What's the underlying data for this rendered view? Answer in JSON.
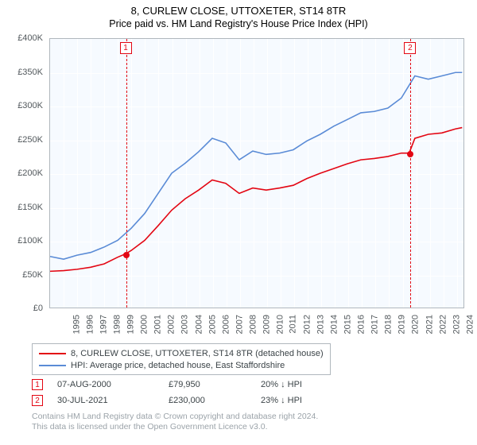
{
  "title": "8, CURLEW CLOSE, UTTOXETER, ST14 8TR",
  "subtitle": "Price paid vs. HM Land Registry's House Price Index (HPI)",
  "chart": {
    "type": "line",
    "background_color": "#f6faff",
    "border_color": "#b0b7bd",
    "grid_color": "#ffffff",
    "x_min": 1995,
    "x_max": 2025.6,
    "x_ticks": [
      1995,
      1996,
      1997,
      1998,
      1999,
      2000,
      2001,
      2002,
      2003,
      2004,
      2005,
      2006,
      2007,
      2008,
      2009,
      2010,
      2011,
      2012,
      2013,
      2014,
      2015,
      2016,
      2017,
      2018,
      2019,
      2020,
      2021,
      2022,
      2023,
      2024,
      2025
    ],
    "y_min": 0,
    "y_max": 400000,
    "y_ticks": [
      {
        "v": 0,
        "label": "£0"
      },
      {
        "v": 50000,
        "label": "£50K"
      },
      {
        "v": 100000,
        "label": "£100K"
      },
      {
        "v": 150000,
        "label": "£150K"
      },
      {
        "v": 200000,
        "label": "£200K"
      },
      {
        "v": 250000,
        "label": "£250K"
      },
      {
        "v": 300000,
        "label": "£300K"
      },
      {
        "v": 350000,
        "label": "£350K"
      },
      {
        "v": 400000,
        "label": "£400K"
      }
    ],
    "y_label_fontsize": 11,
    "x_label_fontsize": 11,
    "line_width": 1.6,
    "series": [
      {
        "name": "price_paid",
        "color": "#e30613",
        "points": [
          [
            1995,
            54000
          ],
          [
            1996,
            55000
          ],
          [
            1997,
            57000
          ],
          [
            1998,
            60000
          ],
          [
            1999,
            65000
          ],
          [
            2000,
            75000
          ],
          [
            2000.6,
            79950
          ],
          [
            2001,
            85000
          ],
          [
            2002,
            100000
          ],
          [
            2003,
            122000
          ],
          [
            2004,
            145000
          ],
          [
            2005,
            162000
          ],
          [
            2006,
            175000
          ],
          [
            2007,
            190000
          ],
          [
            2008,
            185000
          ],
          [
            2009,
            170000
          ],
          [
            2010,
            178000
          ],
          [
            2011,
            175000
          ],
          [
            2012,
            178000
          ],
          [
            2013,
            182000
          ],
          [
            2014,
            192000
          ],
          [
            2015,
            200000
          ],
          [
            2016,
            207000
          ],
          [
            2017,
            214000
          ],
          [
            2018,
            220000
          ],
          [
            2019,
            222000
          ],
          [
            2020,
            225000
          ],
          [
            2021,
            230000
          ],
          [
            2021.58,
            230000
          ],
          [
            2022,
            252000
          ],
          [
            2023,
            258000
          ],
          [
            2024,
            260000
          ],
          [
            2025,
            266000
          ],
          [
            2025.5,
            268000
          ]
        ]
      },
      {
        "name": "hpi",
        "color": "#5a8bd6",
        "points": [
          [
            1995,
            76000
          ],
          [
            1996,
            72000
          ],
          [
            1997,
            78000
          ],
          [
            1998,
            82000
          ],
          [
            1999,
            90000
          ],
          [
            2000,
            100000
          ],
          [
            2001,
            118000
          ],
          [
            2002,
            140000
          ],
          [
            2003,
            170000
          ],
          [
            2004,
            200000
          ],
          [
            2005,
            215000
          ],
          [
            2006,
            232000
          ],
          [
            2007,
            252000
          ],
          [
            2008,
            245000
          ],
          [
            2009,
            220000
          ],
          [
            2010,
            233000
          ],
          [
            2011,
            228000
          ],
          [
            2012,
            230000
          ],
          [
            2013,
            235000
          ],
          [
            2014,
            248000
          ],
          [
            2015,
            258000
          ],
          [
            2016,
            270000
          ],
          [
            2017,
            280000
          ],
          [
            2018,
            290000
          ],
          [
            2019,
            292000
          ],
          [
            2020,
            297000
          ],
          [
            2021,
            312000
          ],
          [
            2022,
            345000
          ],
          [
            2023,
            340000
          ],
          [
            2024,
            345000
          ],
          [
            2025,
            350000
          ],
          [
            2025.5,
            350000
          ]
        ]
      }
    ],
    "marker_lines": [
      {
        "id": "1",
        "x": 2000.6,
        "color": "#e30613",
        "dot_y": 79950
      },
      {
        "id": "2",
        "x": 2021.58,
        "color": "#e30613",
        "dot_y": 230000
      }
    ]
  },
  "legend": {
    "items": [
      {
        "color": "#e30613",
        "label": "8, CURLEW CLOSE, UTTOXETER, ST14 8TR (detached house)"
      },
      {
        "color": "#5a8bd6",
        "label": "HPI: Average price, detached house, East Staffordshire"
      }
    ]
  },
  "transactions": [
    {
      "id": "1",
      "color": "#e30613",
      "date": "07-AUG-2000",
      "price": "£79,950",
      "delta": "20% ↓ HPI"
    },
    {
      "id": "2",
      "color": "#e30613",
      "date": "30-JUL-2021",
      "price": "£230,000",
      "delta": "23% ↓ HPI"
    }
  ],
  "footer_line1": "Contains HM Land Registry data © Crown copyright and database right 2024.",
  "footer_line2": "This data is licensed under the Open Government Licence v3.0."
}
